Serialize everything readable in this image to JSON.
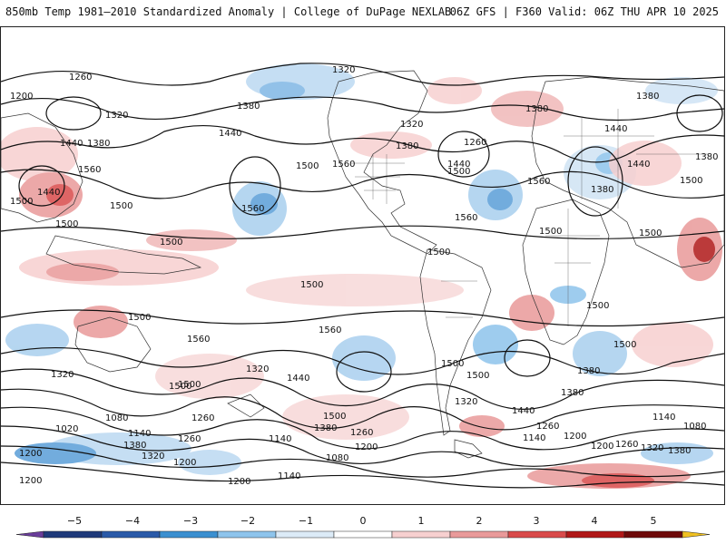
{
  "header": {
    "title_left": "850mb Temp 1981–2010 Standardized Anomaly | College of DuPage NEXLAB",
    "title_right": "06Z GFS | F360 Valid: 06Z THU APR 10 2025"
  },
  "colorbar": {
    "labels": [
      "−5",
      "−4",
      "−3",
      "−2",
      "−1",
      "0",
      "1",
      "2",
      "3",
      "4",
      "5"
    ],
    "colors": [
      "#6a3d9a",
      "#1f3a7a",
      "#2a5aa8",
      "#3b8fd0",
      "#8ec4ec",
      "#dcebf7",
      "#ffffff",
      "#f7d0d0",
      "#e99a9a",
      "#d94b4b",
      "#b01818",
      "#6e0a0a",
      "#f0c020"
    ]
  },
  "contour_labels": [
    "1260",
    "1200",
    "1320",
    "1320",
    "1380",
    "1440",
    "1380",
    "1560",
    "1440",
    "1500",
    "1500",
    "1500",
    "1500",
    "1440",
    "1560",
    "1500",
    "1560",
    "1380",
    "1320",
    "1260",
    "1380",
    "1440",
    "1500",
    "1560",
    "1560",
    "1500",
    "1380",
    "1440",
    "1380",
    "1440",
    "1380",
    "1500",
    "1500",
    "1500",
    "1500",
    "1500",
    "1500",
    "1560",
    "1560",
    "1500",
    "1500",
    "1500",
    "1500",
    "1440",
    "1380",
    "1320",
    "1320",
    "1440",
    "1500",
    "1380",
    "1320",
    "1080",
    "1020",
    "1140",
    "1380",
    "1200",
    "1320",
    "1260",
    "1200",
    "1260",
    "1380",
    "1260",
    "1500",
    "1200",
    "1080",
    "1140",
    "1260",
    "1200",
    "1140",
    "1080",
    "1140",
    "1200",
    "1260",
    "1320",
    "1380",
    "1200",
    "1140",
    "1200"
  ]
}
